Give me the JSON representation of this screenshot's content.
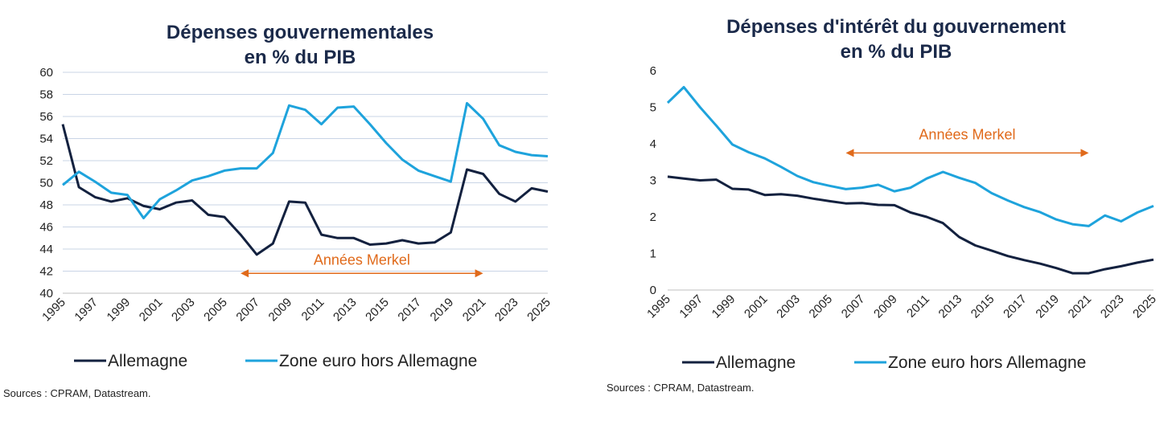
{
  "chart_data": [
    {
      "type": "line",
      "title_lines": [
        "Dépenses gouvernementales",
        "en % du PIB"
      ],
      "x": [
        1995,
        1996,
        1997,
        1998,
        1999,
        2000,
        2001,
        2002,
        2003,
        2004,
        2005,
        2006,
        2007,
        2008,
        2009,
        2010,
        2011,
        2012,
        2013,
        2014,
        2015,
        2016,
        2017,
        2018,
        2019,
        2020,
        2021,
        2022,
        2023,
        2024,
        2025
      ],
      "x_ticks": [
        "1995",
        "1997",
        "1999",
        "2001",
        "2003",
        "2005",
        "2007",
        "2009",
        "2011",
        "2013",
        "2015",
        "2017",
        "2019",
        "2021",
        "2023",
        "2025"
      ],
      "ylim": [
        40,
        60
      ],
      "y_ticks": [
        "40",
        "42",
        "44",
        "46",
        "48",
        "50",
        "52",
        "54",
        "56",
        "58",
        "60"
      ],
      "grid": true,
      "series": [
        {
          "name": "Allemagne",
          "color": "#13213f",
          "values": [
            55.3,
            49.6,
            48.7,
            48.3,
            48.6,
            47.9,
            47.6,
            48.2,
            48.4,
            47.1,
            46.9,
            45.3,
            43.5,
            44.5,
            48.3,
            48.2,
            45.3,
            45.0,
            45.0,
            44.4,
            44.5,
            44.8,
            44.5,
            44.6,
            45.5,
            51.2,
            50.8,
            49.0,
            48.3,
            49.5,
            49.2
          ]
        },
        {
          "name": "Zone euro hors Allemagne",
          "color": "#1ea3dc",
          "values": [
            49.8,
            51.0,
            50.1,
            49.1,
            48.9,
            46.8,
            48.5,
            49.3,
            50.2,
            50.6,
            51.1,
            51.3,
            51.3,
            52.7,
            57.0,
            56.6,
            55.3,
            56.8,
            56.9,
            55.3,
            53.6,
            52.1,
            51.1,
            50.6,
            50.1,
            57.2,
            55.8,
            53.4,
            52.8,
            52.5,
            52.4
          ]
        }
      ],
      "annotation": {
        "text": "Années Merkel",
        "x_start": 2006,
        "x_end": 2021,
        "y": 41.8,
        "color": "#e06a1b"
      },
      "legend": "bottom",
      "source": "Sources : CPRAM, Datastream."
    },
    {
      "type": "line",
      "title_lines": [
        "Dépenses d'intérêt du gouvernement",
        "en % du PIB"
      ],
      "x": [
        1995,
        1996,
        1997,
        1998,
        1999,
        2000,
        2001,
        2002,
        2003,
        2004,
        2005,
        2006,
        2007,
        2008,
        2009,
        2010,
        2011,
        2012,
        2013,
        2014,
        2015,
        2016,
        2017,
        2018,
        2019,
        2020,
        2021,
        2022,
        2023,
        2024,
        2025
      ],
      "x_ticks": [
        "1995",
        "1997",
        "1999",
        "2001",
        "2003",
        "2005",
        "2007",
        "2009",
        "2011",
        "2013",
        "2015",
        "2017",
        "2019",
        "2021",
        "2023",
        "2025"
      ],
      "ylim": [
        0,
        6
      ],
      "y_ticks": [
        "0",
        "1",
        "2",
        "3",
        "4",
        "5",
        "6"
      ],
      "grid": false,
      "series": [
        {
          "name": "Allemagne",
          "color": "#13213f",
          "values": [
            3.1,
            3.05,
            3.0,
            3.02,
            2.77,
            2.75,
            2.6,
            2.62,
            2.58,
            2.5,
            2.43,
            2.37,
            2.38,
            2.33,
            2.32,
            2.12,
            2.0,
            1.83,
            1.45,
            1.22,
            1.08,
            0.93,
            0.82,
            0.72,
            0.6,
            0.46,
            0.46,
            0.57,
            0.65,
            0.75,
            0.83
          ]
        },
        {
          "name": "Zone euro hors Allemagne",
          "color": "#1ea3dc",
          "values": [
            5.12,
            5.55,
            5.0,
            4.5,
            3.98,
            3.77,
            3.6,
            3.37,
            3.12,
            2.95,
            2.85,
            2.76,
            2.8,
            2.88,
            2.7,
            2.8,
            3.05,
            3.23,
            3.07,
            2.93,
            2.65,
            2.45,
            2.27,
            2.13,
            1.93,
            1.8,
            1.75,
            2.04,
            1.88,
            2.12,
            2.3
          ]
        }
      ],
      "annotation": {
        "text": "Années Merkel",
        "x_start": 2006,
        "x_end": 2021,
        "y": 3.75,
        "color": "#e06a1b"
      },
      "legend": "bottom",
      "source": "Sources : CPRAM, Datastream."
    }
  ]
}
